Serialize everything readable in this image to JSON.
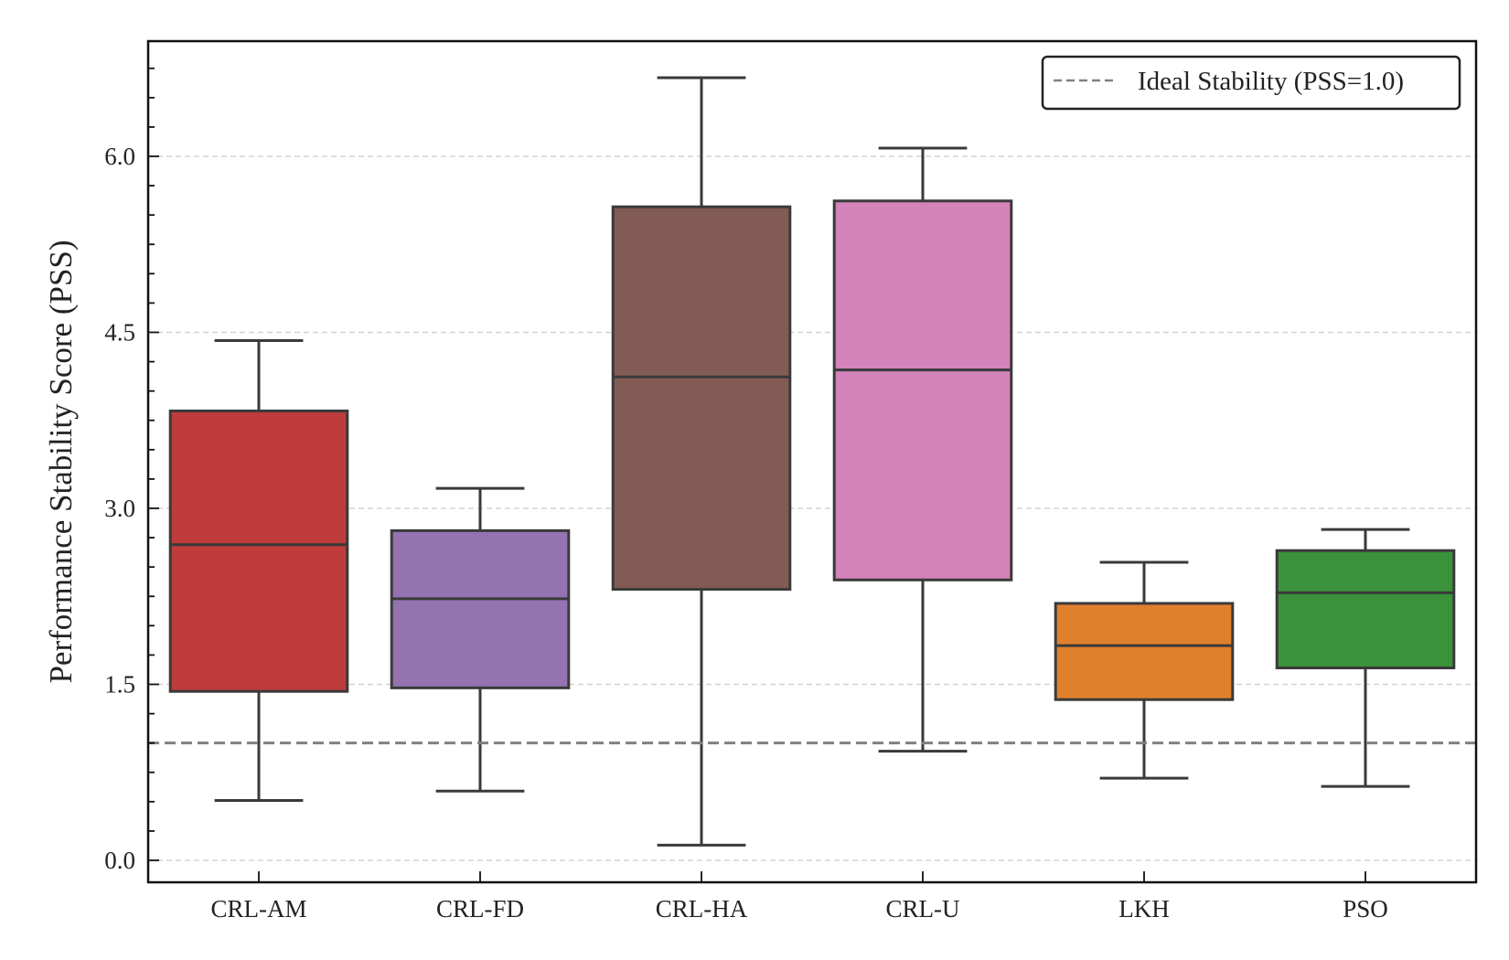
{
  "chart_data": {
    "type": "box",
    "title": "",
    "xlabel": "",
    "ylabel": "Performance Stability Score (PSS)",
    "ylim": [
      -0.2,
      7.1
    ],
    "yticks": [
      "0.0",
      "1.5",
      "3.0",
      "4.5",
      "6.0"
    ],
    "grid": "horizontal dashed at major ticks",
    "legend_position": "top-right",
    "categories": [
      "CRL-AM",
      "CRL-FD",
      "CRL-HA",
      "CRL-U",
      "LKH",
      "PSO"
    ],
    "series": [
      {
        "category": "CRL-AM",
        "color": "#be3c3c",
        "whisker_low": 0.51,
        "q1": 1.44,
        "median": 2.69,
        "q3": 3.83,
        "whisker_high": 4.43
      },
      {
        "category": "CRL-FD",
        "color": "#9473b0",
        "whisker_low": 0.59,
        "q1": 1.47,
        "median": 2.23,
        "q3": 2.81,
        "whisker_high": 3.17
      },
      {
        "category": "CRL-HA",
        "color": "#825b54",
        "whisker_low": 0.13,
        "q1": 2.31,
        "median": 4.12,
        "q3": 5.57,
        "whisker_high": 6.67
      },
      {
        "category": "CRL-U",
        "color": "#d483bb",
        "whisker_low": 0.93,
        "q1": 2.39,
        "median": 4.18,
        "q3": 5.62,
        "whisker_high": 6.07
      },
      {
        "category": "LKH",
        "color": "#e0802d",
        "whisker_low": 0.7,
        "q1": 1.37,
        "median": 1.83,
        "q3": 2.19,
        "whisker_high": 2.54
      },
      {
        "category": "PSO",
        "color": "#3a923a",
        "whisker_low": 0.63,
        "q1": 1.64,
        "median": 2.28,
        "q3": 2.64,
        "whisker_high": 2.82
      }
    ],
    "reference_line": {
      "value": 1.0,
      "label": "Ideal Stability (PSS=1.0)",
      "color": "#808080",
      "style": "dashed"
    }
  }
}
